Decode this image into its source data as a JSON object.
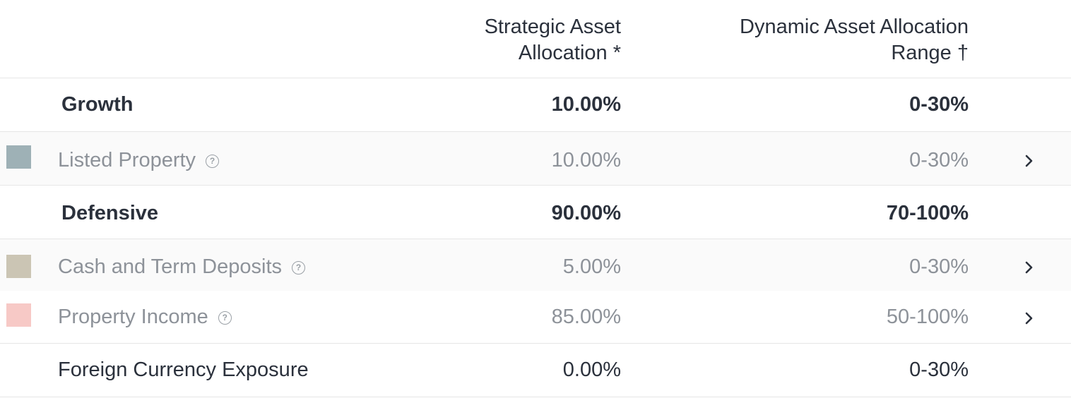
{
  "header": {
    "strategic_line1": "Strategic Asset",
    "strategic_line2": "Allocation *",
    "dynamic_line1": "Dynamic Asset Allocation",
    "dynamic_line2": "Range †"
  },
  "rows": [
    {
      "type": "group",
      "label": "Growth",
      "strategic": "10.00%",
      "dynamic": "0-30%"
    },
    {
      "type": "asset",
      "label": "Listed Property",
      "strategic": "10.00%",
      "dynamic": "0-30%",
      "swatch": "#9eb1b6",
      "help_icon": "help-circle-icon",
      "chevron_icon": "chevron-right-icon"
    },
    {
      "type": "group",
      "label": "Defensive",
      "strategic": "90.00%",
      "dynamic": "70-100%"
    },
    {
      "type": "asset",
      "label": "Cash and Term Deposits",
      "strategic": "5.00%",
      "dynamic": "0-30%",
      "swatch": "#cbc5b4",
      "help_icon": "help-circle-icon",
      "chevron_icon": "chevron-right-icon"
    },
    {
      "type": "asset",
      "label": "Property Income",
      "strategic": "85.00%",
      "dynamic": "50-100%",
      "swatch": "#f7c9c6",
      "help_icon": "help-circle-icon",
      "chevron_icon": "chevron-right-icon"
    },
    {
      "type": "plain",
      "label": "Foreign Currency Exposure",
      "strategic": "0.00%",
      "dynamic": "0-30%"
    }
  ],
  "help_glyph": "?"
}
